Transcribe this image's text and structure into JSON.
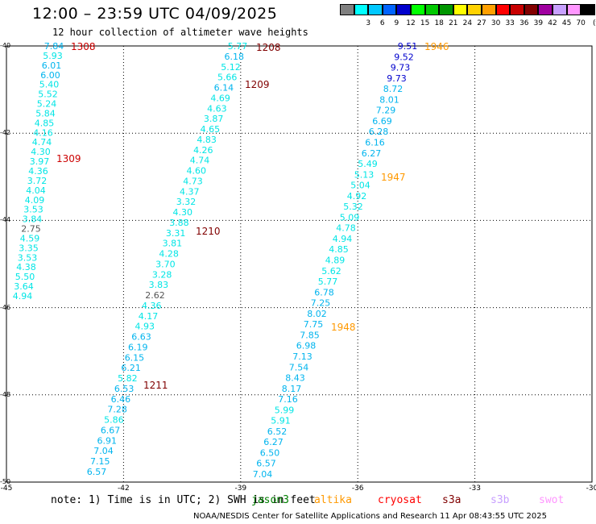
{
  "header": {
    "title": "12:00 – 23:59 UTC 04/09/2025",
    "subtitle": "12 hour collection of altimeter wave heights"
  },
  "legend": {
    "unit": "(ft)",
    "items": [
      {
        "label": "",
        "color": "#808080"
      },
      {
        "label": "3",
        "color": "#00ffff"
      },
      {
        "label": "6",
        "color": "#00c8ff"
      },
      {
        "label": "9",
        "color": "#0064ff"
      },
      {
        "label": "12",
        "color": "#0000cd"
      },
      {
        "label": "15",
        "color": "#00ff00"
      },
      {
        "label": "18",
        "color": "#00c800"
      },
      {
        "label": "21",
        "color": "#009600"
      },
      {
        "label": "24",
        "color": "#ffff00"
      },
      {
        "label": "27",
        "color": "#ffd200"
      },
      {
        "label": "30",
        "color": "#ffa000"
      },
      {
        "label": "33",
        "color": "#ff0000"
      },
      {
        "label": "36",
        "color": "#c80000"
      },
      {
        "label": "39",
        "color": "#820000"
      },
      {
        "label": "42",
        "color": "#a000a0"
      },
      {
        "label": "45",
        "color": "#c8a0ff"
      },
      {
        "label": "70",
        "color": "#ff96ff"
      },
      {
        "label": "",
        "color": "#000000"
      }
    ]
  },
  "axes": {
    "lat_labels": [
      "-40",
      "-42",
      "-44",
      "-46",
      "-48",
      "-50"
    ],
    "lon_labels": [
      "-45",
      "-42",
      "-39",
      "-36",
      "-33",
      "-30"
    ]
  },
  "tracks": [
    {
      "times": [
        {
          "text": "1308",
          "color": "#cc0000"
        },
        {
          "text": "1309",
          "color": "#cc0000"
        }
      ],
      "values": [
        "7.84",
        "5.93",
        "6.01",
        "6.00",
        "5.40",
        "5.52",
        "5.24",
        "5.84",
        "4.85",
        "4.16",
        "4.74",
        "4.30",
        "3.97",
        "4.36",
        "3.72",
        "4.04",
        "4.09",
        "3.53",
        "3.84",
        "2.75",
        "4.59",
        "3.35",
        "3.53",
        "4.38",
        "5.50",
        "3.64",
        "4.94"
      ]
    },
    {
      "times": [
        {
          "text": "1208",
          "color": "#800000"
        },
        {
          "text": "1209",
          "color": "#800000"
        },
        {
          "text": "1210",
          "color": "#800000"
        },
        {
          "text": "1211",
          "color": "#800000"
        }
      ],
      "values": [
        "5.77",
        "6.18",
        "5.12",
        "5.66",
        "6.14",
        "4.69",
        "4.63",
        "3.87",
        "4.65",
        "4.83",
        "4.26",
        "4.74",
        "4.60",
        "4.73",
        "4.37",
        "3.32",
        "4.30",
        "3.88",
        "3.31",
        "3.81",
        "4.28",
        "3.70",
        "3.28",
        "3.83",
        "2.62",
        "4.36",
        "4.17",
        "4.93",
        "6.63",
        "6.19",
        "6.15",
        "6.21",
        "5.82",
        "6.53",
        "6.46",
        "7.28",
        "5.86",
        "6.67",
        "6.91",
        "7.04",
        "7.15",
        "6.57"
      ]
    },
    {
      "times": [
        {
          "text": "1946",
          "color": "#ff9900"
        },
        {
          "text": "1947",
          "color": "#ff9900"
        },
        {
          "text": "1948",
          "color": "#ff9900"
        }
      ],
      "values": [
        "9.51",
        "9.52",
        "9.73",
        "9.73",
        "8.72",
        "8.01",
        "7.29",
        "6.69",
        "6.28",
        "6.16",
        "6.27",
        "5.49",
        "5.13",
        "5.04",
        "4.92",
        "5.32",
        "5.09",
        "4.78",
        "4.94",
        "4.85",
        "4.89",
        "5.62",
        "5.77",
        "6.78",
        "7.25",
        "8.02",
        "7.75",
        "7.85",
        "6.98",
        "7.13",
        "7.54",
        "8.43",
        "8.17",
        "7.16",
        "5.99",
        "5.91",
        "6.52",
        "6.27",
        "6.50",
        "6.57",
        "7.04"
      ]
    }
  ],
  "note": "note: 1) Time is in UTC; 2) SWH is in feet",
  "satellites": [
    {
      "name": "jason3",
      "color": "#008000"
    },
    {
      "name": "altika",
      "color": "#ff9900"
    },
    {
      "name": "cryosat",
      "color": "#ff0000"
    },
    {
      "name": "s3a",
      "color": "#800000"
    },
    {
      "name": "s3b",
      "color": "#c8a0ff"
    },
    {
      "name": "swot",
      "color": "#ff96ff"
    }
  ],
  "footer": "NOAA/NESDIS Center for Satellite Applications and Research    11 Apr 08:43:55 UTC 2025"
}
